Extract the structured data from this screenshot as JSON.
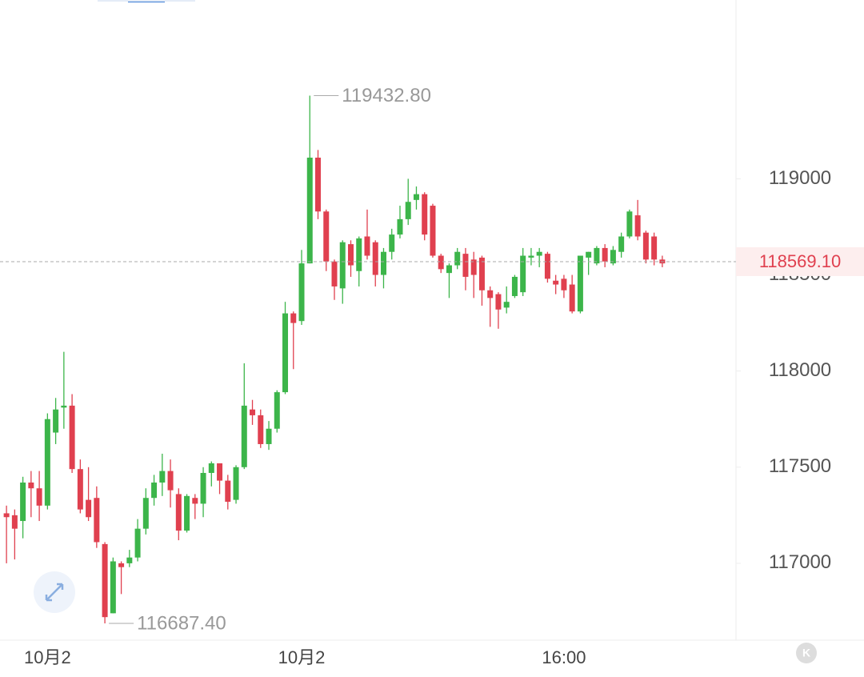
{
  "chart_data": {
    "type": "candlestick",
    "categories": [
      null,
      null,
      null,
      null,
      null,
      "10月2",
      null,
      null,
      null,
      null,
      null,
      null,
      null,
      null,
      null,
      null,
      null,
      null,
      null,
      null,
      null,
      null,
      null,
      null,
      null,
      null,
      null,
      null,
      null,
      null,
      null,
      null,
      null,
      null,
      null,
      null,
      "10月2",
      null,
      null,
      null,
      null,
      null,
      null,
      null,
      null,
      null,
      null,
      null,
      null,
      null,
      null,
      null,
      null,
      null,
      null,
      null,
      null,
      null,
      null,
      null,
      null,
      null,
      null,
      null,
      null,
      null,
      null,
      null,
      "16:00",
      null,
      null,
      null,
      null,
      null,
      null,
      null,
      null,
      null,
      null,
      null,
      null
    ],
    "open": [
      117260,
      117250,
      117220,
      117420,
      117390,
      117300,
      117680,
      117810,
      117820,
      117490,
      117330,
      117340,
      117100,
      116740,
      117000,
      117000,
      117030,
      117180,
      117340,
      117420,
      117480,
      117360,
      117170,
      117340,
      117310,
      117470,
      117520,
      117430,
      117330,
      117500,
      117800,
      117770,
      117620,
      117700,
      117890,
      118300,
      118260,
      118560,
      119110,
      118830,
      118570,
      118430,
      118660,
      118520,
      118700,
      118670,
      118500,
      118620,
      118710,
      118790,
      118890,
      118920,
      118860,
      118600,
      118510,
      118550,
      118610,
      118580,
      118590,
      118420,
      118400,
      118330,
      118390,
      118410,
      118590,
      118600,
      118610,
      118470,
      118480,
      118450,
      118310,
      118590,
      118560,
      118640,
      118560,
      118620,
      118700,
      118810,
      118720,
      118700,
      118580
    ],
    "high": [
      117300,
      117280,
      117450,
      117480,
      117480,
      117780,
      117860,
      118100,
      117880,
      117540,
      117500,
      117400,
      117110,
      117030,
      117010,
      117070,
      117230,
      117390,
      117460,
      117570,
      117540,
      117390,
      117360,
      117360,
      117500,
      117530,
      117520,
      117460,
      117510,
      118040,
      117850,
      117800,
      117740,
      117900,
      118360,
      118310,
      118630,
      119432.8,
      119150,
      118840,
      118580,
      118680,
      118680,
      118700,
      118840,
      118680,
      118640,
      118740,
      118860,
      119000,
      118960,
      118930,
      118870,
      118610,
      118560,
      118640,
      118640,
      118620,
      118600,
      118440,
      118410,
      118440,
      118500,
      118640,
      118640,
      118640,
      118620,
      118500,
      118500,
      118500,
      118600,
      118620,
      118650,
      118660,
      118650,
      118720,
      118840,
      118890,
      118730,
      118720,
      118600
    ],
    "low": [
      117000,
      117020,
      117130,
      117240,
      117220,
      117280,
      117620,
      117700,
      117470,
      117260,
      117220,
      117080,
      116687.4,
      116740,
      116840,
      116980,
      117010,
      117150,
      117300,
      117350,
      117290,
      117120,
      117160,
      117230,
      117240,
      117400,
      117360,
      117280,
      117310,
      117490,
      117720,
      117600,
      117590,
      117680,
      117880,
      118010,
      118240,
      118560,
      118790,
      118520,
      118370,
      118350,
      118490,
      118440,
      118580,
      118440,
      118430,
      118580,
      118690,
      118760,
      118840,
      118680,
      118590,
      118510,
      118380,
      118530,
      118420,
      118380,
      118340,
      118230,
      118220,
      118300,
      118380,
      118390,
      118550,
      118540,
      118460,
      118400,
      118380,
      118300,
      118300,
      118500,
      118550,
      118540,
      118550,
      118590,
      118690,
      118680,
      118560,
      118550,
      118540
    ],
    "close": [
      117240,
      117180,
      117420,
      117390,
      117300,
      117750,
      117800,
      117820,
      117490,
      117280,
      117240,
      117110,
      116720,
      117010,
      116980,
      117030,
      117180,
      117340,
      117420,
      117480,
      117380,
      117170,
      117350,
      117310,
      117470,
      117520,
      117430,
      117320,
      117500,
      117820,
      117770,
      117620,
      117700,
      117890,
      118300,
      118250,
      118560,
      119110,
      118830,
      118570,
      118440,
      118670,
      118550,
      118690,
      118600,
      118500,
      118620,
      118710,
      118790,
      118880,
      118920,
      118710,
      118600,
      118530,
      118550,
      118620,
      118490,
      118500,
      118420,
      118380,
      118320,
      118360,
      118490,
      118600,
      118600,
      118620,
      118480,
      118450,
      118420,
      118310,
      118600,
      118620,
      118640,
      118570,
      118630,
      118700,
      118830,
      118700,
      118580,
      118580,
      118560
    ],
    "up_color": "#3cb54a",
    "down_color": "#e0404f",
    "ylim": [
      116600,
      119930
    ],
    "yticks": [
      117000,
      117500,
      118000,
      118500,
      119000
    ],
    "high_annotation": {
      "value": 119432.8,
      "label": "119432.80"
    },
    "low_annotation": {
      "value": 116687.4,
      "label": "116687.40"
    },
    "last_price": {
      "value": 118569.1,
      "label": "118569.10"
    },
    "logo": "K"
  }
}
